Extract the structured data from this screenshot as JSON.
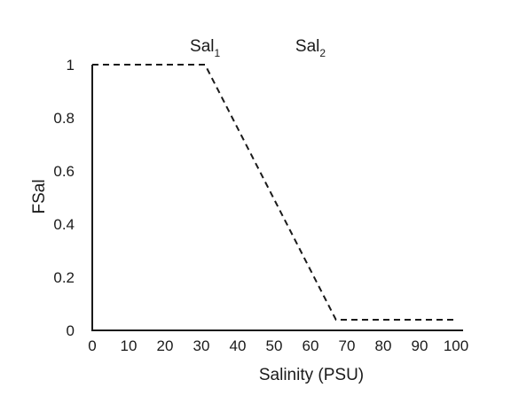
{
  "chart_data": {
    "type": "line",
    "xlabel": "Salinity (PSU)",
    "ylabel": "FSal",
    "xlim": [
      0,
      100
    ],
    "ylim": [
      0,
      1
    ],
    "xticks": [
      "0",
      "10",
      "20",
      "30",
      "40",
      "50",
      "60",
      "70",
      "80",
      "90",
      "100"
    ],
    "yticks": [
      "0",
      "0.2",
      "0.4",
      "0.6",
      "0.8",
      "1"
    ],
    "grid": false,
    "legend": "none",
    "series": [
      {
        "line_style": "dashed",
        "color": "#1a1a1a",
        "x": [
          0,
          31,
          67,
          100
        ],
        "y": [
          1,
          1,
          0.04,
          0.04
        ]
      }
    ],
    "annotations": [
      {
        "base": "Sal",
        "sub": "1",
        "x": 31,
        "y": 1.05
      },
      {
        "base": "Sal",
        "sub": "2",
        "x": 60,
        "y": 1.05
      }
    ]
  }
}
